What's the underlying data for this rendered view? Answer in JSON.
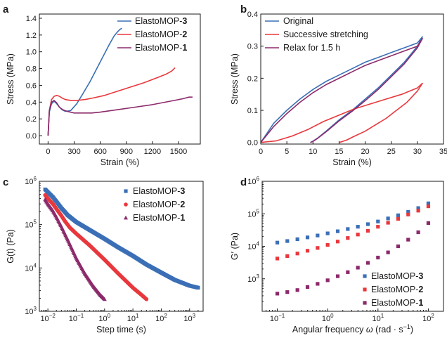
{
  "panels": [
    {
      "letter": "a"
    },
    {
      "letter": "b"
    },
    {
      "letter": "c"
    },
    {
      "letter": "d"
    }
  ],
  "chart_data": [
    {
      "panel": "a",
      "type": "line",
      "xlabel": "Strain (%)",
      "ylabel": "Stress (MPa)",
      "xlim": [
        -100,
        1750
      ],
      "ylim": [
        -0.1,
        1.45
      ],
      "xticks": [
        0,
        300,
        600,
        900,
        1200,
        1500
      ],
      "yticks": [
        0.0,
        0.2,
        0.4,
        0.6,
        0.8,
        1.0,
        1.2,
        1.4
      ],
      "legend_position": "top-right",
      "series": [
        {
          "name_parts": [
            "ElastoMOP-",
            "3"
          ],
          "color": "#3b6fb6",
          "x": [
            0,
            15,
            40,
            70,
            100,
            130,
            160,
            200,
            260,
            330,
            400,
            480,
            560,
            640,
            700,
            760,
            800,
            830,
            850
          ],
          "y": [
            0,
            0.28,
            0.38,
            0.41,
            0.38,
            0.34,
            0.31,
            0.29,
            0.3,
            0.38,
            0.5,
            0.64,
            0.8,
            0.96,
            1.08,
            1.19,
            1.24,
            1.27,
            1.28
          ]
        },
        {
          "name_parts": [
            "ElastoMOP-",
            "2"
          ],
          "color": "#e8383d",
          "x": [
            0,
            15,
            40,
            70,
            100,
            130,
            160,
            200,
            260,
            330,
            420,
            520,
            650,
            800,
            950,
            1100,
            1250,
            1350,
            1420,
            1450,
            1460
          ],
          "y": [
            0,
            0.3,
            0.43,
            0.47,
            0.48,
            0.47,
            0.45,
            0.43,
            0.42,
            0.42,
            0.43,
            0.45,
            0.48,
            0.53,
            0.58,
            0.63,
            0.69,
            0.73,
            0.77,
            0.8,
            0.81
          ]
        },
        {
          "name_parts": [
            "ElastoMOP-",
            "1"
          ],
          "color": "#8b2a6b",
          "x": [
            0,
            15,
            40,
            70,
            100,
            130,
            170,
            220,
            300,
            400,
            500,
            600,
            800,
            1000,
            1200,
            1400,
            1550,
            1620,
            1660
          ],
          "y": [
            0,
            0.3,
            0.4,
            0.42,
            0.39,
            0.34,
            0.31,
            0.29,
            0.27,
            0.27,
            0.27,
            0.28,
            0.31,
            0.34,
            0.37,
            0.41,
            0.44,
            0.46,
            0.46
          ]
        }
      ]
    },
    {
      "panel": "b",
      "type": "line",
      "xlabel": "Strain (%)",
      "ylabel": "Stress (MPa)",
      "xlim": [
        0,
        35
      ],
      "ylim": [
        -0.005,
        0.4
      ],
      "xticks": [
        0,
        5,
        10,
        15,
        20,
        25,
        30,
        35
      ],
      "yticks": [
        0.0,
        0.1,
        0.2,
        0.3,
        0.4
      ],
      "legend_position": "top-left",
      "series": [
        {
          "name": "Original",
          "color": "#3b6fb6",
          "loading": {
            "x": [
              0,
              2.5,
              5,
              7.5,
              10,
              12.5,
              15,
              17.5,
              20,
              22.5,
              25,
              27.5,
              30,
              31
            ],
            "y": [
              0,
              0.06,
              0.1,
              0.135,
              0.165,
              0.19,
              0.21,
              0.23,
              0.25,
              0.265,
              0.28,
              0.295,
              0.31,
              0.33
            ]
          },
          "unloading": {
            "x": [
              31,
              30,
              27.5,
              25,
              22.5,
              20,
              17.5,
              15,
              12.5,
              11,
              10,
              9.5
            ],
            "y": [
              0.33,
              0.3,
              0.25,
              0.21,
              0.17,
              0.135,
              0.1,
              0.07,
              0.035,
              0.015,
              0.004,
              0
            ]
          }
        },
        {
          "name": "Successive stretching",
          "color": "#e8383d",
          "loading": {
            "x": [
              0,
              3,
              6,
              9,
              12,
              15,
              18,
              21,
              24,
              27,
              30,
              31
            ],
            "y": [
              0,
              0.005,
              0.02,
              0.04,
              0.065,
              0.085,
              0.105,
              0.12,
              0.135,
              0.15,
              0.17,
              0.185
            ]
          },
          "unloading": {
            "x": [
              31,
              30,
              28,
              26,
              24,
              22,
              20,
              18,
              16.5,
              15.5,
              15
            ],
            "y": [
              0.185,
              0.16,
              0.125,
              0.1,
              0.075,
              0.055,
              0.035,
              0.02,
              0.008,
              0.002,
              0
            ]
          }
        },
        {
          "name": "Relax for 1.5 h",
          "color": "#8b2a6b",
          "loading": {
            "x": [
              0,
              2.5,
              5,
              7.5,
              10,
              12.5,
              15,
              17.5,
              20,
              22.5,
              25,
              27.5,
              30,
              31
            ],
            "y": [
              0,
              0.05,
              0.09,
              0.125,
              0.155,
              0.18,
              0.2,
              0.22,
              0.24,
              0.255,
              0.27,
              0.285,
              0.3,
              0.325
            ]
          },
          "unloading": {
            "x": [
              31,
              30,
              27.5,
              25,
              22.5,
              20,
              17.5,
              15,
              12.5,
              11,
              10,
              9.5
            ],
            "y": [
              0.325,
              0.295,
              0.245,
              0.205,
              0.165,
              0.13,
              0.097,
              0.067,
              0.033,
              0.014,
              0.003,
              0
            ]
          }
        }
      ]
    },
    {
      "panel": "c",
      "type": "scatter",
      "xlabel": "Step time (s)",
      "ylabel": "G(t) (Pa)",
      "xscale": "log",
      "yscale": "log",
      "xlim": [
        0.005,
        3000
      ],
      "ylim": [
        1000,
        1000000
      ],
      "xtick_exponents": [
        -2,
        -1,
        0,
        1,
        2,
        3
      ],
      "ytick_exponents": [
        3,
        4,
        5,
        6
      ],
      "legend_position": "top-right",
      "series": [
        {
          "name_parts": [
            "ElastoMOP-",
            "3"
          ],
          "color": "#3b6fb6",
          "marker": "square",
          "x": [
            0.008,
            0.01,
            0.015,
            0.02,
            0.03,
            0.05,
            0.1,
            0.3,
            1,
            3,
            10,
            30,
            100,
            300,
            1000,
            2000
          ],
          "y": [
            650000,
            560000,
            430000,
            340000,
            240000,
            165000,
            115000,
            75000,
            47000,
            30000,
            19000,
            12000,
            7800,
            5300,
            3900,
            3500
          ]
        },
        {
          "name_parts": [
            "ElastoMOP-",
            "2"
          ],
          "color": "#e8383d",
          "marker": "circle",
          "x": [
            0.008,
            0.01,
            0.015,
            0.02,
            0.03,
            0.04,
            0.06,
            0.1,
            0.3,
            1,
            3,
            10,
            20,
            30
          ],
          "y": [
            480000,
            400000,
            300000,
            230000,
            160000,
            120000,
            85000,
            62000,
            33000,
            15500,
            7500,
            3500,
            2400,
            1900
          ]
        },
        {
          "name_parts": [
            "ElastoMOP-",
            "1"
          ],
          "color": "#8b2a6b",
          "marker": "triangle",
          "x": [
            0.008,
            0.01,
            0.015,
            0.02,
            0.03,
            0.05,
            0.1,
            0.2,
            0.4,
            0.7,
            1
          ],
          "y": [
            380000,
            300000,
            210000,
            150000,
            90000,
            45000,
            17000,
            7500,
            3800,
            2400,
            1900
          ]
        }
      ]
    },
    {
      "panel": "d",
      "type": "scatter",
      "xlabel_text": "Angular frequency ",
      "xlabel_symbol": "ω",
      "xlabel_units": " (rad · s",
      "xlabel_units_sup": "−1",
      "xlabel_close": ")",
      "ylabel": "G′ (Pa)",
      "xscale": "log",
      "yscale": "log",
      "xlim": [
        0.05,
        200
      ],
      "ylim": [
        100,
        1000000
      ],
      "xtick_exponents": [
        -1,
        0,
        1,
        2
      ],
      "ytick_exponents": [
        3,
        4,
        5,
        6
      ],
      "legend_position": "bottom-right",
      "series": [
        {
          "name_parts": [
            "ElastoMOP-",
            "3"
          ],
          "color": "#3b6fb6",
          "marker": "square",
          "x": [
            0.1,
            0.158,
            0.251,
            0.398,
            0.631,
            1,
            1.585,
            2.512,
            3.981,
            6.31,
            10,
            15.85,
            25.12,
            39.81,
            63.1,
            100
          ],
          "y": [
            13000,
            14500,
            16500,
            18800,
            21500,
            25000,
            29000,
            34000,
            40000,
            48000,
            58000,
            72000,
            90000,
            115000,
            150000,
            210000
          ]
        },
        {
          "name_parts": [
            "ElastoMOP-",
            "2"
          ],
          "color": "#e8383d",
          "marker": "square",
          "x": [
            0.1,
            0.158,
            0.251,
            0.398,
            0.631,
            1,
            1.585,
            2.512,
            3.981,
            6.31,
            10,
            15.85,
            25.12,
            39.81,
            63.1,
            100
          ],
          "y": [
            4200,
            5000,
            6000,
            7300,
            8900,
            11000,
            14000,
            18000,
            23000,
            30000,
            40000,
            53000,
            70000,
            95000,
            125000,
            170000
          ]
        },
        {
          "name_parts": [
            "ElastoMOP-",
            "1"
          ],
          "color": "#8b2a6b",
          "marker": "square",
          "x": [
            0.1,
            0.158,
            0.251,
            0.398,
            0.631,
            1,
            1.585,
            2.512,
            3.981,
            6.31,
            10,
            15.85,
            25.12,
            39.81,
            63.1,
            100
          ],
          "y": [
            350,
            390,
            450,
            560,
            700,
            900,
            1200,
            1600,
            2200,
            3100,
            4500,
            6500,
            10000,
            16000,
            27000,
            52000
          ]
        }
      ]
    }
  ]
}
